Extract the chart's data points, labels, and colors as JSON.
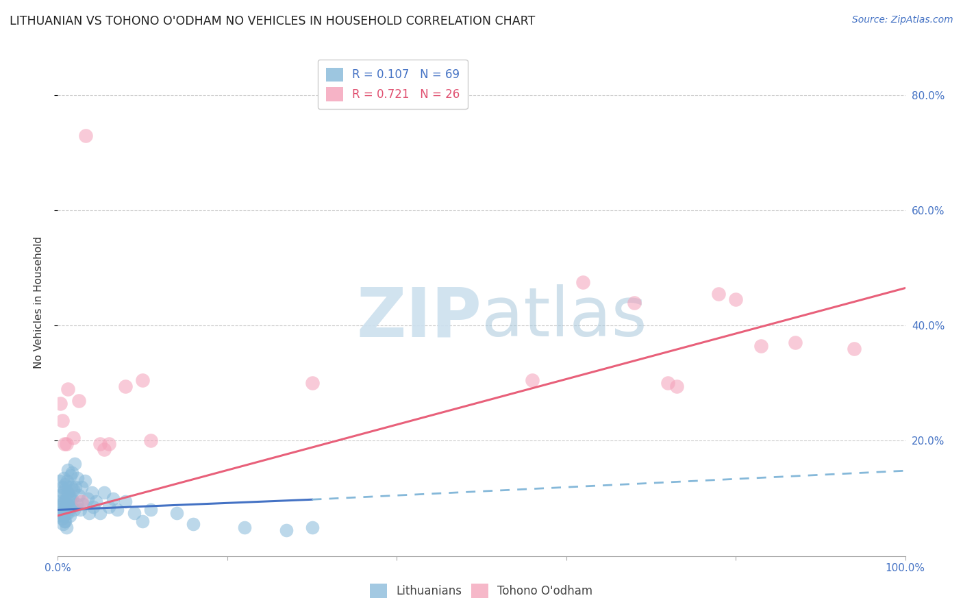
{
  "title": "LITHUANIAN VS TOHONO O'ODHAM NO VEHICLES IN HOUSEHOLD CORRELATION CHART",
  "source": "Source: ZipAtlas.com",
  "ylabel": "No Vehicles in Household",
  "x_tick_labels": [
    "0.0%",
    "",
    "",
    "",
    "",
    "",
    "",
    "",
    "",
    "",
    "100.0%"
  ],
  "y_tick_labels": [
    "20.0%",
    "40.0%",
    "60.0%",
    "80.0%"
  ],
  "xlim": [
    0.0,
    1.0
  ],
  "ylim": [
    0.0,
    0.88
  ],
  "legend_r1": "R = 0.107   N = 69",
  "legend_r2": "R = 0.721   N = 26",
  "blue_scatter": [
    [
      0.002,
      0.13
    ],
    [
      0.002,
      0.095
    ],
    [
      0.003,
      0.085
    ],
    [
      0.003,
      0.075
    ],
    [
      0.004,
      0.105
    ],
    [
      0.004,
      0.07
    ],
    [
      0.005,
      0.12
    ],
    [
      0.005,
      0.09
    ],
    [
      0.005,
      0.065
    ],
    [
      0.006,
      0.11
    ],
    [
      0.006,
      0.075
    ],
    [
      0.006,
      0.055
    ],
    [
      0.007,
      0.135
    ],
    [
      0.007,
      0.095
    ],
    [
      0.007,
      0.07
    ],
    [
      0.008,
      0.115
    ],
    [
      0.008,
      0.08
    ],
    [
      0.008,
      0.06
    ],
    [
      0.009,
      0.125
    ],
    [
      0.009,
      0.085
    ],
    [
      0.009,
      0.06
    ],
    [
      0.01,
      0.1
    ],
    [
      0.01,
      0.075
    ],
    [
      0.01,
      0.05
    ],
    [
      0.011,
      0.13
    ],
    [
      0.011,
      0.09
    ],
    [
      0.012,
      0.15
    ],
    [
      0.012,
      0.11
    ],
    [
      0.012,
      0.075
    ],
    [
      0.013,
      0.12
    ],
    [
      0.013,
      0.085
    ],
    [
      0.014,
      0.1
    ],
    [
      0.014,
      0.07
    ],
    [
      0.015,
      0.14
    ],
    [
      0.015,
      0.1
    ],
    [
      0.016,
      0.12
    ],
    [
      0.016,
      0.085
    ],
    [
      0.017,
      0.145
    ],
    [
      0.017,
      0.1
    ],
    [
      0.018,
      0.115
    ],
    [
      0.019,
      0.08
    ],
    [
      0.02,
      0.16
    ],
    [
      0.021,
      0.12
    ],
    [
      0.022,
      0.09
    ],
    [
      0.023,
      0.135
    ],
    [
      0.025,
      0.105
    ],
    [
      0.026,
      0.08
    ],
    [
      0.028,
      0.12
    ],
    [
      0.03,
      0.09
    ],
    [
      0.032,
      0.13
    ],
    [
      0.035,
      0.1
    ],
    [
      0.037,
      0.075
    ],
    [
      0.04,
      0.11
    ],
    [
      0.042,
      0.085
    ],
    [
      0.045,
      0.095
    ],
    [
      0.05,
      0.075
    ],
    [
      0.055,
      0.11
    ],
    [
      0.06,
      0.085
    ],
    [
      0.065,
      0.1
    ],
    [
      0.07,
      0.08
    ],
    [
      0.08,
      0.095
    ],
    [
      0.09,
      0.075
    ],
    [
      0.1,
      0.06
    ],
    [
      0.11,
      0.08
    ],
    [
      0.14,
      0.075
    ],
    [
      0.16,
      0.055
    ],
    [
      0.22,
      0.05
    ],
    [
      0.27,
      0.045
    ],
    [
      0.3,
      0.05
    ]
  ],
  "pink_scatter": [
    [
      0.003,
      0.265
    ],
    [
      0.005,
      0.235
    ],
    [
      0.008,
      0.195
    ],
    [
      0.01,
      0.195
    ],
    [
      0.012,
      0.29
    ],
    [
      0.018,
      0.205
    ],
    [
      0.025,
      0.27
    ],
    [
      0.028,
      0.095
    ],
    [
      0.033,
      0.73
    ],
    [
      0.05,
      0.195
    ],
    [
      0.055,
      0.185
    ],
    [
      0.06,
      0.195
    ],
    [
      0.08,
      0.295
    ],
    [
      0.1,
      0.305
    ],
    [
      0.11,
      0.2
    ],
    [
      0.3,
      0.3
    ],
    [
      0.56,
      0.305
    ],
    [
      0.62,
      0.475
    ],
    [
      0.68,
      0.44
    ],
    [
      0.72,
      0.3
    ],
    [
      0.73,
      0.295
    ],
    [
      0.78,
      0.455
    ],
    [
      0.8,
      0.445
    ],
    [
      0.83,
      0.365
    ],
    [
      0.87,
      0.37
    ],
    [
      0.94,
      0.36
    ]
  ],
  "blue_line_solid": {
    "x0": 0.0,
    "y0": 0.08,
    "x1": 0.3,
    "y1": 0.098
  },
  "blue_line_dash": {
    "x0": 0.3,
    "y0": 0.098,
    "x1": 1.0,
    "y1": 0.148
  },
  "pink_line": {
    "x0": 0.0,
    "y0": 0.07,
    "x1": 1.0,
    "y1": 0.465
  },
  "blue_dot_color": "#85b8d9",
  "pink_dot_color": "#f4a0b8",
  "blue_line_color": "#4472c4",
  "pink_line_color": "#e8607a",
  "title_fontsize": 12.5,
  "axis_label_fontsize": 11,
  "tick_fontsize": 11,
  "source_fontsize": 10
}
